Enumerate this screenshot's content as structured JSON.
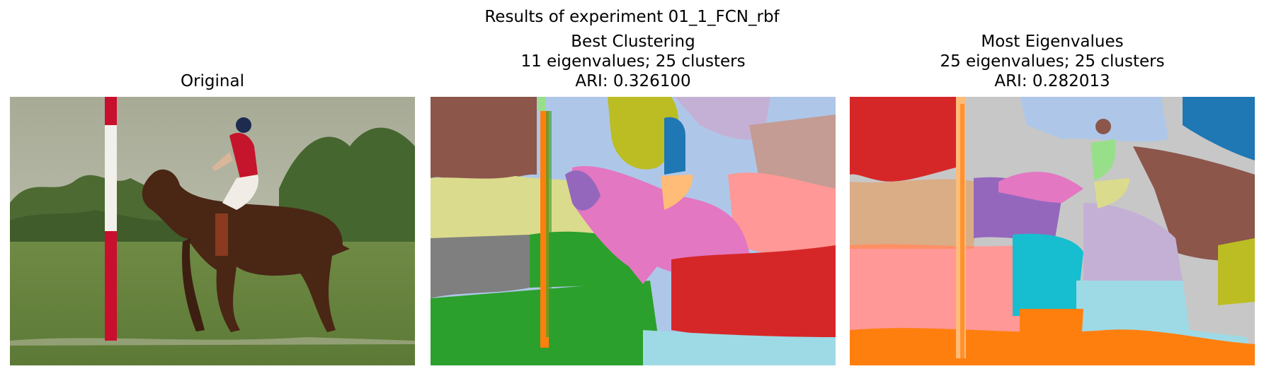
{
  "figure": {
    "suptitle": "Results of experiment 01_1_FCN_rbf"
  },
  "panels": [
    {
      "id": "original",
      "title_lines": [
        "Original"
      ]
    },
    {
      "id": "best",
      "title_lines": [
        "Best Clustering",
        "11 eigenvalues; 25 clusters",
        "ARI: 0.326100"
      ]
    },
    {
      "id": "most",
      "title_lines": [
        "Most Eigenvalues",
        "25 eigenvalues; 25 clusters",
        "ARI: 0.282013"
      ]
    }
  ],
  "palette": {
    "blue": "#1f77b4",
    "light_blue": "#aec7e8",
    "orange": "#ff7f0e",
    "light_orange": "#ffbb78",
    "green": "#2ca02c",
    "light_green": "#98df8a",
    "red": "#d62728",
    "pink_salmon": "#ff9896",
    "purple": "#9467bd",
    "lavender": "#c5b0d5",
    "brown": "#8c564b",
    "rose_brown": "#c49c94",
    "pink": "#e377c2",
    "light_pink": "#f7b6d2",
    "gray": "#7f7f7f",
    "light_gray": "#c7c7c7",
    "olive": "#bcbd22",
    "khaki": "#dbdb8d",
    "cyan": "#17becf",
    "light_cyan": "#9edae5"
  }
}
